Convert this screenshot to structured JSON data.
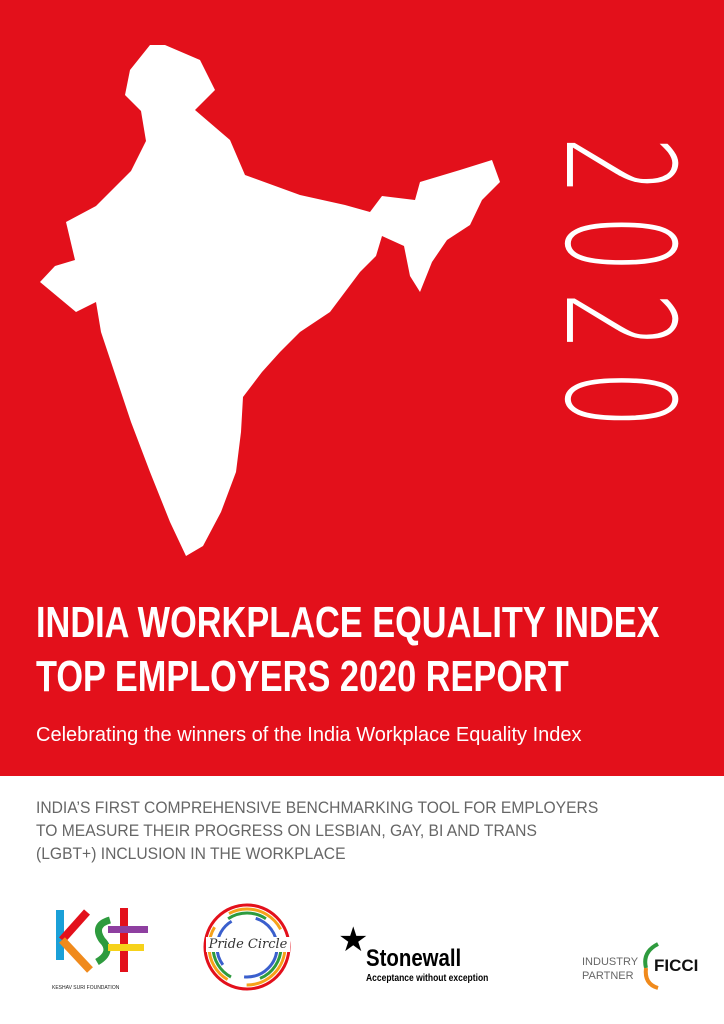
{
  "cover": {
    "year": "2020",
    "title_line1": "INDIA WORKPLACE EQUALITY INDEX",
    "title_line2": "TOP EMPLOYERS 2020 REPORT",
    "subtitle": "Celebrating the winners of the India Workplace Equality Index",
    "tagline": [
      "INDIA’S FIRST COMPREHENSIVE BENCHMARKING TOOL FOR EMPLOYERS",
      "TO MEASURE THEIR PROGRESS ON LESBIAN, GAY, BI AND TRANS",
      "(LGBT+) INCLUSION IN THE WORKPLACE"
    ],
    "brand_color": "#e3101b"
  },
  "logos": {
    "ksf": {
      "mark": "KSF",
      "caption": "KESHAV SURI FOUNDATION"
    },
    "pride_circle": {
      "name": "Pride Circle"
    },
    "stonewall": {
      "name": "Stonewall",
      "tagline": "Acceptance without exception"
    },
    "ficci": {
      "label": "INDUSTRY PARTNER",
      "label_line1": "INDUSTRY",
      "label_line2": "PARTNER",
      "name": "FICCI"
    }
  }
}
